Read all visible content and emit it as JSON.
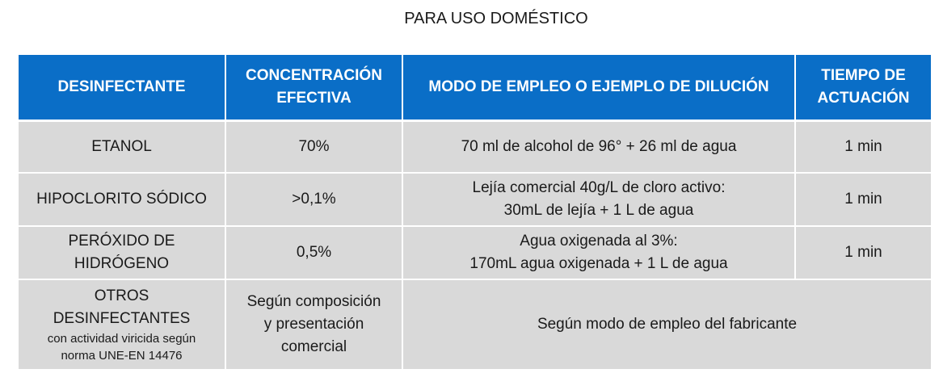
{
  "page": {
    "title": "PARA USO DOMÉSTICO"
  },
  "table": {
    "headers": {
      "col1": "DESINFECTANTE",
      "col2_line1": "CONCENTRACIÓN",
      "col2_line2": "EFECTIVA",
      "col3": "MODO DE EMPLEO O EJEMPLO DE DILUCIÓN",
      "col4_line1": "TIEMPO DE",
      "col4_line2": "ACTUACIÓN"
    },
    "rows": [
      {
        "disinfectant": "ETANOL",
        "concentration": "70%",
        "usage": "70 ml de alcohol de 96° + 26 ml de agua",
        "time": "1 min"
      },
      {
        "disinfectant": "HIPOCLORITO SÓDICO",
        "concentration": ">0,1%",
        "usage_line1": "Lejía comercial 40g/L de cloro activo:",
        "usage_line2": "30mL de lejía + 1 L de agua",
        "time": "1 min"
      },
      {
        "disinfectant_line1": "PERÓXIDO DE",
        "disinfectant_line2": "HIDRÓGENO",
        "concentration": "0,5%",
        "usage_line1": "Agua oxigenada al 3%:",
        "usage_line2": "170mL agua oxigenada + 1 L de agua",
        "time": "1 min"
      },
      {
        "disinfectant_line1": "OTROS",
        "disinfectant_line2": "DESINFECTANTES",
        "disinfectant_note_line1": "con actividad viricida según",
        "disinfectant_note_line2": "norma UNE-EN 14476",
        "concentration_line1": "Según composición",
        "concentration_line2": "y presentación",
        "concentration_line3": "comercial",
        "usage": "Según modo de empleo del fabricante"
      }
    ]
  },
  "colors": {
    "header_bg": "#0a6ec7",
    "header_text": "#ffffff",
    "cell_bg": "#d9d9d9",
    "body_text": "#1a1a1a"
  }
}
